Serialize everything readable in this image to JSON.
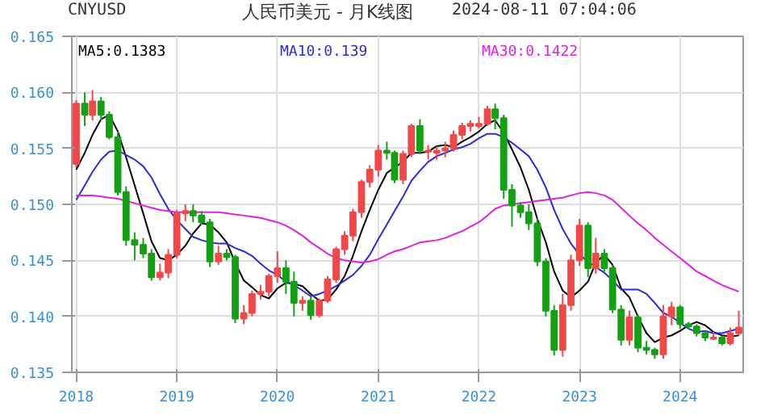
{
  "chart_data": {
    "type": "candlestick",
    "title": "人民币美元 - 月K线图",
    "annotations": [
      "CNYUSD",
      "2024-08-11 07:04:06"
    ],
    "x": [
      "2018-01",
      "2018-02",
      "2018-03",
      "2018-04",
      "2018-05",
      "2018-06",
      "2018-07",
      "2018-08",
      "2018-09",
      "2018-10",
      "2018-11",
      "2018-12",
      "2019-01",
      "2019-02",
      "2019-03",
      "2019-04",
      "2019-05",
      "2019-06",
      "2019-07",
      "2019-08",
      "2019-09",
      "2019-10",
      "2019-11",
      "2019-12",
      "2020-01",
      "2020-02",
      "2020-03",
      "2020-04",
      "2020-05",
      "2020-06",
      "2020-07",
      "2020-08",
      "2020-09",
      "2020-10",
      "2020-11",
      "2020-12",
      "2021-01",
      "2021-02",
      "2021-03",
      "2021-04",
      "2021-05",
      "2021-06",
      "2021-07",
      "2021-08",
      "2021-09",
      "2021-10",
      "2021-11",
      "2021-12",
      "2022-01",
      "2022-02",
      "2022-03",
      "2022-04",
      "2022-05",
      "2022-06",
      "2022-07",
      "2022-08",
      "2022-09",
      "2022-10",
      "2022-11",
      "2022-12",
      "2023-01",
      "2023-02",
      "2023-03",
      "2023-04",
      "2023-05",
      "2023-06",
      "2023-07",
      "2023-08",
      "2023-09",
      "2023-10",
      "2023-11",
      "2023-12",
      "2024-01",
      "2024-02",
      "2024-03",
      "2024-04",
      "2024-05",
      "2024-06",
      "2024-07",
      "2024-08"
    ],
    "ohlc": [
      [
        0.1536,
        0.1593,
        0.1533,
        0.159
      ],
      [
        0.159,
        0.16,
        0.157,
        0.158
      ],
      [
        0.158,
        0.1602,
        0.1575,
        0.1592
      ],
      [
        0.1592,
        0.1596,
        0.1575,
        0.158
      ],
      [
        0.158,
        0.1583,
        0.1558,
        0.156
      ],
      [
        0.156,
        0.1565,
        0.1508,
        0.1511
      ],
      [
        0.1511,
        0.1516,
        0.1463,
        0.1468
      ],
      [
        0.1468,
        0.1475,
        0.145,
        0.1464
      ],
      [
        0.1464,
        0.147,
        0.1452,
        0.1456
      ],
      [
        0.1456,
        0.146,
        0.1432,
        0.1435
      ],
      [
        0.1435,
        0.1447,
        0.1432,
        0.1439
      ],
      [
        0.1439,
        0.146,
        0.1434,
        0.1455
      ],
      [
        0.1455,
        0.1495,
        0.1452,
        0.1492
      ],
      [
        0.1492,
        0.15,
        0.1485,
        0.1494
      ],
      [
        0.1494,
        0.15,
        0.1484,
        0.149
      ],
      [
        0.149,
        0.1494,
        0.1482,
        0.1484
      ],
      [
        0.1484,
        0.1487,
        0.1444,
        0.1449
      ],
      [
        0.1449,
        0.1463,
        0.1446,
        0.1456
      ],
      [
        0.1456,
        0.146,
        0.145,
        0.1453
      ],
      [
        0.1453,
        0.1455,
        0.1394,
        0.1398
      ],
      [
        0.1398,
        0.141,
        0.1393,
        0.1403
      ],
      [
        0.1403,
        0.1423,
        0.14,
        0.142
      ],
      [
        0.142,
        0.1428,
        0.1415,
        0.1422
      ],
      [
        0.1422,
        0.1438,
        0.1418,
        0.1436
      ],
      [
        0.1436,
        0.1458,
        0.143,
        0.1443
      ],
      [
        0.1443,
        0.145,
        0.142,
        0.1431
      ],
      [
        0.1431,
        0.144,
        0.14,
        0.1412
      ],
      [
        0.1412,
        0.1418,
        0.1405,
        0.1414
      ],
      [
        0.1414,
        0.1418,
        0.1397,
        0.1401
      ],
      [
        0.1401,
        0.1416,
        0.1399,
        0.1414
      ],
      [
        0.1414,
        0.1436,
        0.1412,
        0.1433
      ],
      [
        0.1433,
        0.1462,
        0.143,
        0.146
      ],
      [
        0.146,
        0.1476,
        0.1455,
        0.1472
      ],
      [
        0.1472,
        0.1496,
        0.1467,
        0.1493
      ],
      [
        0.1493,
        0.1522,
        0.1488,
        0.152
      ],
      [
        0.152,
        0.1535,
        0.1515,
        0.1531
      ],
      [
        0.1531,
        0.1553,
        0.1525,
        0.1548
      ],
      [
        0.1548,
        0.1556,
        0.154,
        0.1546
      ],
      [
        0.1546,
        0.1548,
        0.1519,
        0.1522
      ],
      [
        0.1522,
        0.1548,
        0.1518,
        0.1545
      ],
      [
        0.1545,
        0.1572,
        0.1542,
        0.157
      ],
      [
        0.157,
        0.1576,
        0.1545,
        0.1548
      ],
      [
        0.1547,
        0.1553,
        0.154,
        0.1548
      ],
      [
        0.1546,
        0.1552,
        0.154,
        0.1548
      ],
      [
        0.1548,
        0.1556,
        0.1542,
        0.155
      ],
      [
        0.155,
        0.1566,
        0.1547,
        0.1562
      ],
      [
        0.1562,
        0.1573,
        0.1558,
        0.157
      ],
      [
        0.157,
        0.1575,
        0.1565,
        0.1572
      ],
      [
        0.157,
        0.1578,
        0.1568,
        0.1572
      ],
      [
        0.1572,
        0.1588,
        0.157,
        0.1585
      ],
      [
        0.1585,
        0.159,
        0.1567,
        0.1577
      ],
      [
        0.1577,
        0.158,
        0.1505,
        0.1513
      ],
      [
        0.1513,
        0.1518,
        0.148,
        0.1499
      ],
      [
        0.1499,
        0.1502,
        0.1488,
        0.1493
      ],
      [
        0.1493,
        0.15,
        0.1477,
        0.1483
      ],
      [
        0.1483,
        0.1487,
        0.1445,
        0.1449
      ],
      [
        0.1449,
        0.1452,
        0.14,
        0.1405
      ],
      [
        0.1405,
        0.141,
        0.1365,
        0.137
      ],
      [
        0.137,
        0.142,
        0.1364,
        0.141
      ],
      [
        0.141,
        0.1455,
        0.1405,
        0.145
      ],
      [
        0.145,
        0.1487,
        0.1445,
        0.1481
      ],
      [
        0.1481,
        0.1484,
        0.1435,
        0.1443
      ],
      [
        0.1443,
        0.147,
        0.1438,
        0.1456
      ],
      [
        0.1456,
        0.146,
        0.144,
        0.1443
      ],
      [
        0.1443,
        0.1446,
        0.1403,
        0.1406
      ],
      [
        0.1406,
        0.141,
        0.1374,
        0.1379
      ],
      [
        0.1379,
        0.1405,
        0.1374,
        0.1399
      ],
      [
        0.1399,
        0.1402,
        0.1368,
        0.1372
      ],
      [
        0.1372,
        0.1378,
        0.1366,
        0.137
      ],
      [
        0.137,
        0.1372,
        0.1362,
        0.1366
      ],
      [
        0.1366,
        0.141,
        0.1362,
        0.14
      ],
      [
        0.14,
        0.1413,
        0.1392,
        0.1408
      ],
      [
        0.1408,
        0.141,
        0.1389,
        0.1393
      ],
      [
        0.1393,
        0.1395,
        0.1388,
        0.1391
      ],
      [
        0.1391,
        0.1393,
        0.1382,
        0.1385
      ],
      [
        0.1385,
        0.1387,
        0.1378,
        0.1381
      ],
      [
        0.138,
        0.1386,
        0.1379,
        0.1381
      ],
      [
        0.1381,
        0.1383,
        0.1374,
        0.1376
      ],
      [
        0.1376,
        0.139,
        0.1374,
        0.1385
      ],
      [
        0.1385,
        0.1405,
        0.1383,
        0.139
      ]
    ],
    "colors": [
      "#f04848",
      "#14a014",
      "#f04848",
      "#14a014",
      "#14a014",
      "#14a014",
      "#14a014",
      "#14a014",
      "#14a014",
      "#14a014",
      "#f04848",
      "#f04848",
      "#f04848",
      "#f04848",
      "#14a014",
      "#14a014",
      "#14a014",
      "#f04848",
      "#14a014",
      "#14a014",
      "#f04848",
      "#f04848",
      "#f04848",
      "#f04848",
      "#f04848",
      "#14a014",
      "#14a014",
      "#f04848",
      "#14a014",
      "#f04848",
      "#f04848",
      "#f04848",
      "#f04848",
      "#f04848",
      "#f04848",
      "#f04848",
      "#f04848",
      "#14a014",
      "#14a014",
      "#f04848",
      "#f04848",
      "#14a014",
      "#f04848",
      "#f04848",
      "#f04848",
      "#f04848",
      "#f04848",
      "#f04848",
      "#f04848",
      "#f04848",
      "#14a014",
      "#14a014",
      "#14a014",
      "#14a014",
      "#14a014",
      "#14a014",
      "#14a014",
      "#14a014",
      "#f04848",
      "#f04848",
      "#f04848",
      "#14a014",
      "#f04848",
      "#14a014",
      "#14a014",
      "#14a014",
      "#f04848",
      "#14a014",
      "#14a014",
      "#14a014",
      "#f04848",
      "#f04848",
      "#14a014",
      "#14a014",
      "#14a014",
      "#14a014",
      "#f04848",
      "#14a014",
      "#f04848",
      "#f04848"
    ],
    "series": [
      {
        "name": "MA5:0.1383",
        "type": "line",
        "color": "#000000",
        "values": [
          0.1531,
          0.1546,
          0.1562,
          0.1576,
          0.158,
          0.1565,
          0.1542,
          0.1517,
          0.1492,
          0.1467,
          0.1452,
          0.145,
          0.1455,
          0.1463,
          0.1474,
          0.1483,
          0.1482,
          0.1475,
          0.1466,
          0.1448,
          0.1432,
          0.1426,
          0.1419,
          0.1416,
          0.1425,
          0.143,
          0.1429,
          0.1427,
          0.142,
          0.1414,
          0.1415,
          0.1424,
          0.1436,
          0.1454,
          0.1476,
          0.1495,
          0.1513,
          0.1528,
          0.1533,
          0.1538,
          0.1546,
          0.1546,
          0.1547,
          0.1552,
          0.1553,
          0.1551,
          0.1556,
          0.156,
          0.1565,
          0.1572,
          0.1575,
          0.1564,
          0.1549,
          0.1533,
          0.1513,
          0.1487,
          0.1466,
          0.144,
          0.1423,
          0.1417,
          0.1423,
          0.1431,
          0.1448,
          0.1455,
          0.1446,
          0.1425,
          0.1417,
          0.14,
          0.1385,
          0.1377,
          0.1381,
          0.1383,
          0.1387,
          0.1392,
          0.1395,
          0.1392,
          0.1386,
          0.1383,
          0.1382,
          0.1383
        ]
      },
      {
        "name": "MA10:0.139",
        "type": "line",
        "color": "#2b2bd8",
        "values": [
          0.1504,
          0.1517,
          0.1529,
          0.154,
          0.1547,
          0.1548,
          0.1544,
          0.154,
          0.1534,
          0.1524,
          0.1509,
          0.1496,
          0.1486,
          0.1478,
          0.1471,
          0.1468,
          0.1466,
          0.1465,
          0.1465,
          0.1461,
          0.1458,
          0.1454,
          0.1447,
          0.1441,
          0.1437,
          0.1431,
          0.1428,
          0.1423,
          0.1418,
          0.142,
          0.1423,
          0.1427,
          0.1432,
          0.1437,
          0.1445,
          0.1455,
          0.1469,
          0.1482,
          0.1494,
          0.1507,
          0.1521,
          0.153,
          0.1538,
          0.1543,
          0.1546,
          0.1549,
          0.1551,
          0.1554,
          0.1559,
          0.1563,
          0.1563,
          0.156,
          0.1555,
          0.1549,
          0.1543,
          0.1531,
          0.1515,
          0.1495,
          0.1478,
          0.1465,
          0.1455,
          0.1449,
          0.1444,
          0.1439,
          0.1432,
          0.1424,
          0.1424,
          0.1424,
          0.142,
          0.1412,
          0.1403,
          0.14,
          0.1394,
          0.1389,
          0.1386,
          0.1387,
          0.1385,
          0.1385,
          0.1387,
          0.1389
        ]
      },
      {
        "name": "MA30:0.1422",
        "type": "line",
        "color": "#e022e0",
        "values": [
          0.1508,
          0.1508,
          0.1508,
          0.1507,
          0.1506,
          0.1505,
          0.1503,
          0.1501,
          0.1499,
          0.1497,
          0.1495,
          0.1494,
          0.1493,
          0.1493,
          0.1493,
          0.1493,
          0.1493,
          0.1493,
          0.1492,
          0.1491,
          0.149,
          0.1489,
          0.1488,
          0.1486,
          0.1484,
          0.1481,
          0.1477,
          0.1472,
          0.1466,
          0.1461,
          0.1456,
          0.1452,
          0.145,
          0.1449,
          0.1448,
          0.1449,
          0.1451,
          0.1455,
          0.1458,
          0.146,
          0.1463,
          0.1466,
          0.1467,
          0.1468,
          0.147,
          0.1473,
          0.1476,
          0.148,
          0.1484,
          0.149,
          0.1496,
          0.1499,
          0.15,
          0.1501,
          0.1502,
          0.1503,
          0.1504,
          0.1505,
          0.1506,
          0.1508,
          0.151,
          0.1511,
          0.151,
          0.1508,
          0.1504,
          0.1497,
          0.149,
          0.1483,
          0.1477,
          0.147,
          0.1464,
          0.1458,
          0.1452,
          0.1446,
          0.144,
          0.1436,
          0.1432,
          0.1428,
          0.1425,
          0.1422
        ]
      }
    ],
    "ylim": [
      0.135,
      0.165
    ],
    "yticks": [
      {
        "value": 0.135,
        "label": "0.135"
      },
      {
        "value": 0.14,
        "label": "0.140"
      },
      {
        "value": 0.145,
        "label": "0.145"
      },
      {
        "value": 0.15,
        "label": "0.150"
      },
      {
        "value": 0.155,
        "label": "0.155"
      },
      {
        "value": 0.16,
        "label": "0.160"
      },
      {
        "value": 0.165,
        "label": "0.165"
      }
    ],
    "xlim": [
      "2017-12-16",
      "2024-08-17"
    ],
    "xticks": [
      "2018",
      "2019",
      "2020",
      "2021",
      "2022",
      "2023",
      "2024"
    ],
    "grid": true,
    "legend": "top"
  }
}
